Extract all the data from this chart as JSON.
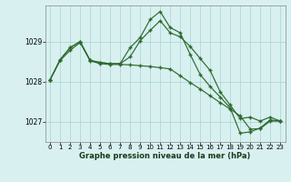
{
  "hours": [
    0,
    1,
    2,
    3,
    4,
    5,
    6,
    7,
    8,
    9,
    10,
    11,
    12,
    13,
    14,
    15,
    16,
    17,
    18,
    19,
    20,
    21,
    22,
    23
  ],
  "line1": [
    1028.05,
    1028.55,
    1028.85,
    1029.0,
    1028.53,
    1028.48,
    1028.45,
    1028.45,
    1028.85,
    1029.1,
    1029.55,
    1029.75,
    1029.35,
    1029.22,
    1028.68,
    1028.18,
    1027.88,
    1027.62,
    1027.35,
    1026.72,
    1026.75,
    1026.85,
    1027.05,
    1027.02
  ],
  "line2": [
    1028.05,
    1028.55,
    1028.85,
    1029.0,
    1028.53,
    1028.48,
    1028.45,
    1028.45,
    1028.62,
    1029.02,
    1029.28,
    1029.52,
    1029.22,
    1029.12,
    1028.88,
    1028.58,
    1028.28,
    1027.75,
    1027.42,
    1027.08,
    1027.12,
    1027.02,
    1027.12,
    1027.02
  ],
  "line3": [
    1028.05,
    1028.53,
    1028.78,
    1028.98,
    1028.52,
    1028.45,
    1028.43,
    1028.43,
    1028.42,
    1028.4,
    1028.38,
    1028.35,
    1028.32,
    1028.15,
    1027.98,
    1027.82,
    1027.65,
    1027.48,
    1027.32,
    1027.15,
    1026.82,
    1026.83,
    1027.02,
    1027.02
  ],
  "line_color": "#2d6a2d",
  "bg_color": "#d8f0f0",
  "grid_color": "#b0d8d8",
  "xlabel": "Graphe pression niveau de la mer (hPa)",
  "ylim": [
    1026.5,
    1029.9
  ],
  "yticks": [
    1027,
    1028,
    1029
  ],
  "xlim": [
    -0.5,
    23.5
  ],
  "xticks": [
    0,
    1,
    2,
    3,
    4,
    5,
    6,
    7,
    8,
    9,
    10,
    11,
    12,
    13,
    14,
    15,
    16,
    17,
    18,
    19,
    20,
    21,
    22,
    23
  ]
}
